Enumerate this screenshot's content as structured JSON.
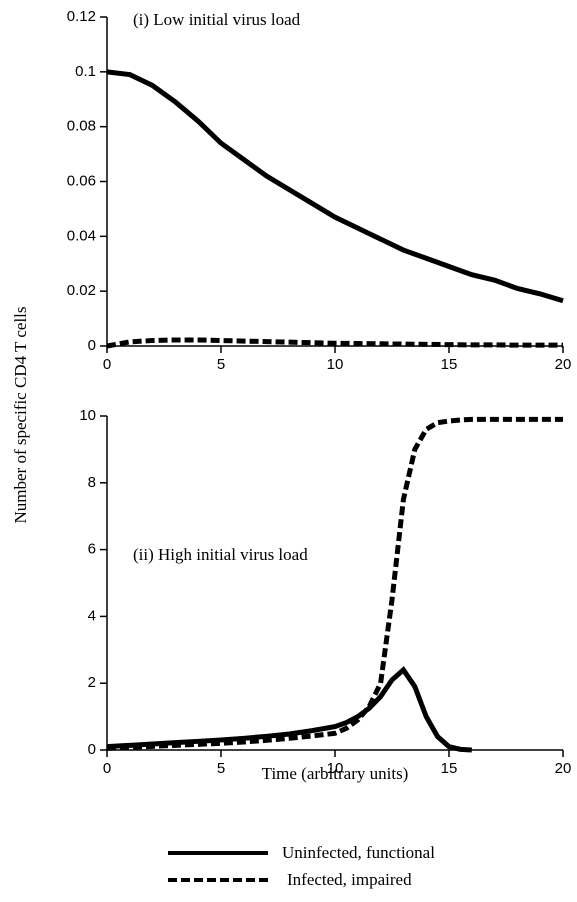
{
  "chart_data": [
    {
      "type": "line",
      "annotation": "(i) Low initial virus load",
      "x": [
        0,
        1,
        2,
        3,
        4,
        5,
        6,
        7,
        8,
        9,
        10,
        11,
        12,
        13,
        14,
        15,
        16,
        17,
        18,
        19,
        20
      ],
      "series": [
        {
          "color": "#000000",
          "style": "solid",
          "values": [
            0.1,
            0.099,
            0.095,
            0.089,
            0.082,
            0.074,
            0.068,
            0.062,
            0.057,
            0.052,
            0.047,
            0.043,
            0.039,
            0.035,
            0.032,
            0.029,
            0.026,
            0.024,
            0.021,
            0.019,
            0.0165
          ]
        },
        {
          "color": "#000000",
          "style": "dashed",
          "values": [
            0,
            0.0015,
            0.002,
            0.0022,
            0.0022,
            0.002,
            0.0018,
            0.0016,
            0.0014,
            0.0012,
            0.001,
            0.0009,
            0.0008,
            0.0007,
            0.0006,
            0.0005,
            0.0004,
            0.0004,
            0.0003,
            0.0003,
            0.0003
          ]
        }
      ],
      "xlim": [
        0,
        20
      ],
      "xticks": [
        0,
        5,
        10,
        15,
        20
      ],
      "ylim": [
        0,
        0.12
      ],
      "yticks": [
        0,
        0.02,
        0.04,
        0.06,
        0.08,
        0.1,
        0.12
      ]
    },
    {
      "type": "line",
      "annotation": "(ii) High initial virus load",
      "xlabel": "Time (arbitrary units)",
      "ylabel": "Number of specific CD4 T cells",
      "x": [
        0,
        1,
        2,
        3,
        4,
        5,
        6,
        7,
        8,
        9,
        10,
        10.5,
        11,
        11.5,
        12,
        12.5,
        13,
        13.5,
        14,
        14.5,
        15,
        15.5,
        16,
        17,
        18,
        19,
        20
      ],
      "series": [
        {
          "name": "Uninfected, functional",
          "color": "#000000",
          "style": "solid",
          "values": [
            0.1,
            0.14,
            0.18,
            0.22,
            0.26,
            0.3,
            0.35,
            0.41,
            0.48,
            0.58,
            0.7,
            0.82,
            1.0,
            1.25,
            1.6,
            2.1,
            2.4,
            1.9,
            1.0,
            0.4,
            0.1,
            0.02,
            0,
            null,
            null,
            null,
            null
          ]
        },
        {
          "name": "Infected, impaired",
          "color": "#000000",
          "style": "dashed",
          "values": [
            0.05,
            0.08,
            0.11,
            0.14,
            0.17,
            0.2,
            0.24,
            0.29,
            0.35,
            0.42,
            0.5,
            0.65,
            0.9,
            1.3,
            2.0,
            4.5,
            7.5,
            9.0,
            9.6,
            9.8,
            9.85,
            9.88,
            9.9,
            9.9,
            9.9,
            9.9,
            9.9
          ]
        }
      ],
      "xlim": [
        0,
        20
      ],
      "xticks": [
        0,
        5,
        10,
        15,
        20
      ],
      "ylim": [
        0,
        10
      ],
      "yticks": [
        0,
        2,
        4,
        6,
        8,
        10
      ]
    }
  ]
}
